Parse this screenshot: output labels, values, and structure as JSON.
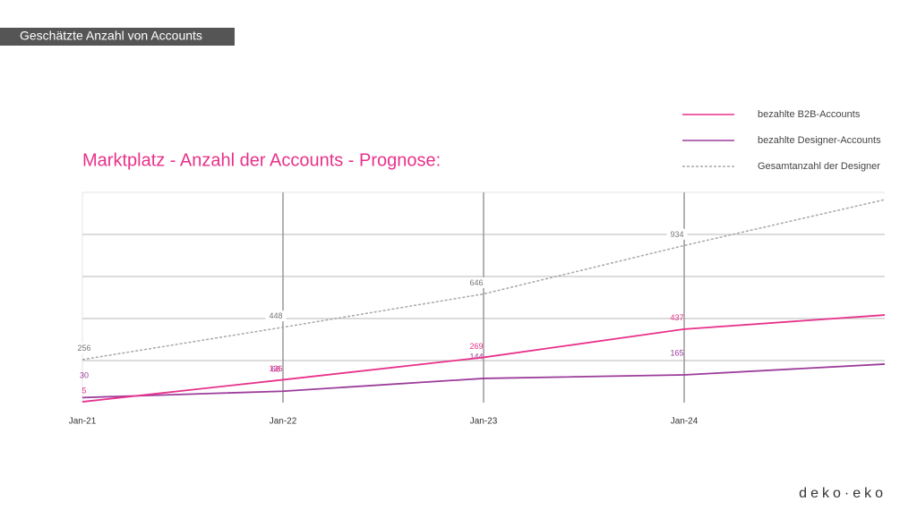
{
  "header": {
    "title": "Geschätzte Anzahl von Accounts"
  },
  "logo": "deko·eko",
  "chart_data": {
    "type": "line",
    "title": "Marktplatz - Anzahl der Accounts - Prognose:",
    "categories": [
      "Jan-21",
      "Jan-22",
      "Jan-23",
      "Jan-24",
      null
    ],
    "series": [
      {
        "name": "bezahlte B2B-Accounts",
        "color": "#e8318a",
        "dashed": false,
        "values": [
          5,
          136,
          269,
          437,
          521
        ]
      },
      {
        "name": "bezahlte Designer-Accounts",
        "color": "#9b3c9b",
        "dashed": false,
        "values": [
          30,
          68,
          144,
          165,
          229
        ]
      },
      {
        "name": "Gesamtanzahl der Designer",
        "color": "#a8a8a8",
        "dashed": true,
        "values": [
          256,
          448,
          646,
          934,
          1207
        ]
      }
    ],
    "ylim": [
      0,
      1250
    ],
    "ygrid": [
      250,
      500,
      750,
      1000
    ],
    "legend": "top-right"
  }
}
